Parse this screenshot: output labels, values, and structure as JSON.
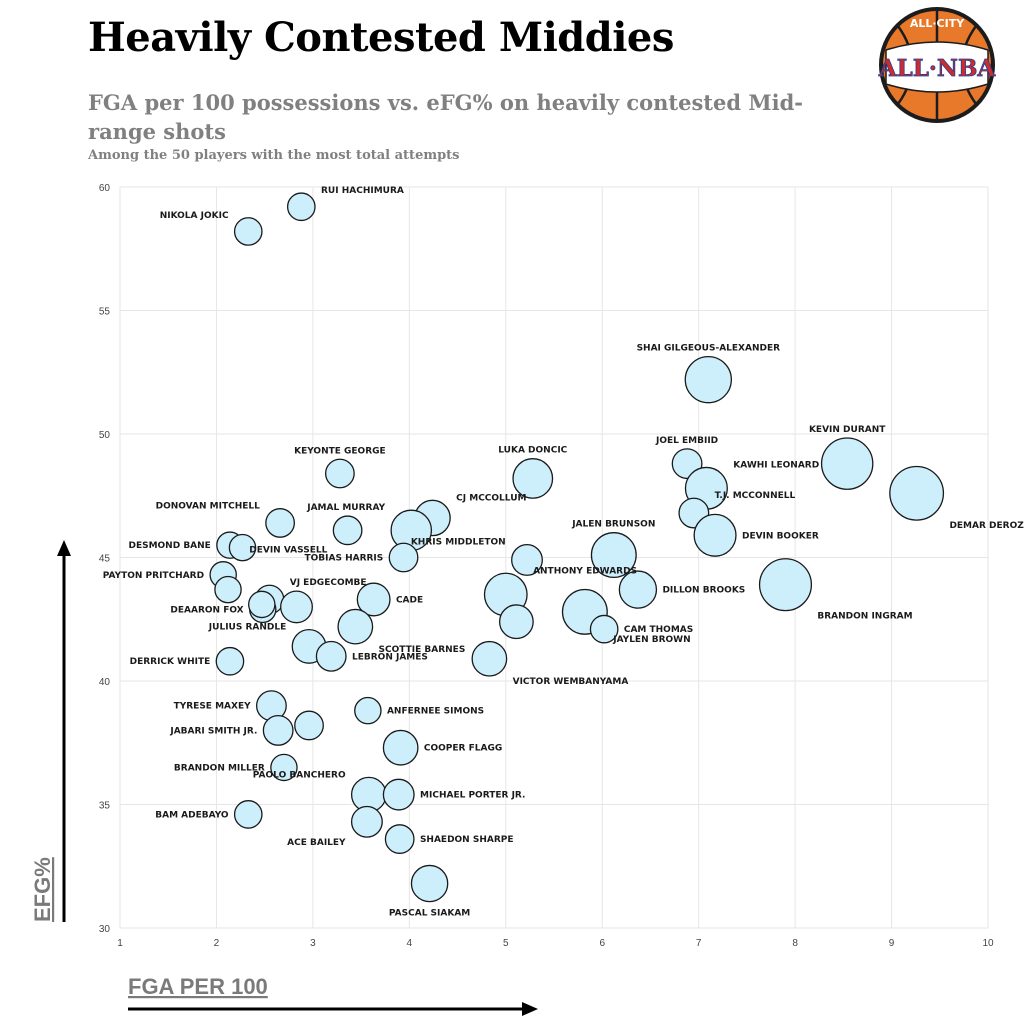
{
  "header": {
    "title": "Heavily Contested Middies",
    "subtitle": "FGA per 100 possessions vs. eFG% on heavily contested Mid-range shots",
    "note": "Among the 50 players with the most total attempts"
  },
  "logo": {
    "top_text": "ALL·CITY",
    "main_text": "ALL·NBA",
    "colors": {
      "ball": "#e8782a",
      "ring": "#1c1c1c",
      "red": "#d12a2a",
      "blue": "#1f3f99"
    }
  },
  "colors": {
    "bubble_fill": "#cdeefb",
    "bubble_stroke": "#1a1a1a",
    "grid": "#e6e6e6"
  },
  "chart_data": {
    "type": "scatter",
    "xlabel": "FGA PER 100",
    "ylabel": "EFG%",
    "xlim": [
      1,
      10
    ],
    "ylim": [
      30,
      60
    ],
    "xticks": [
      1,
      2,
      3,
      4,
      5,
      6,
      7,
      8,
      9,
      10
    ],
    "yticks": [
      30,
      35,
      40,
      45,
      50,
      55,
      60
    ],
    "grid": true,
    "size_encoding": "total attempts",
    "points": [
      {
        "label": "RUI HACHIMURA",
        "x": 2.88,
        "y": 59.2,
        "size": 120,
        "lx": 1,
        "ly": -1
      },
      {
        "label": "NIKOLA JOKIC",
        "x": 2.33,
        "y": 58.2,
        "size": 120,
        "lx": -1,
        "ly": -1
      },
      {
        "label": "SHAI GILGEOUS-ALEXANDER",
        "x": 7.1,
        "y": 52.2,
        "size": 340,
        "lx": 0,
        "ly": -1
      },
      {
        "label": "KEVIN DURANT",
        "x": 8.54,
        "y": 48.8,
        "size": 420,
        "lx": 0,
        "ly": -1
      },
      {
        "label": "DEMAR DEROZAN",
        "x": 9.26,
        "y": 47.6,
        "size": 460,
        "lx": 1,
        "ly": 1
      },
      {
        "label": "JOEL EMBIID",
        "x": 6.88,
        "y": 48.8,
        "size": 140,
        "lx": 0,
        "ly": -1
      },
      {
        "label": "KAWHI LEONARD",
        "x": 7.08,
        "y": 47.8,
        "size": 280,
        "lx": 1,
        "ly": -1
      },
      {
        "label": "T.J. MCCONNELL",
        "x": 6.95,
        "y": 46.8,
        "size": 140,
        "lx": 1,
        "ly": -1
      },
      {
        "label": "DEVIN BOOKER",
        "x": 7.17,
        "y": 45.9,
        "size": 280,
        "lx": 1,
        "ly": 0
      },
      {
        "label": "LUKA DONCIC",
        "x": 5.28,
        "y": 48.2,
        "size": 250,
        "lx": 0,
        "ly": -1
      },
      {
        "label": "KEYONTE GEORGE",
        "x": 3.28,
        "y": 48.4,
        "size": 130,
        "lx": 0,
        "ly": -1
      },
      {
        "label": "CJ MCCOLLUM",
        "x": 4.24,
        "y": 46.6,
        "size": 200,
        "lx": 1,
        "ly": -1
      },
      {
        "label": "JAMAL MURRAY",
        "x": 4.02,
        "y": 46.1,
        "size": 260,
        "lx": -1,
        "ly": -1
      },
      {
        "label": "KHRIS MIDDLETON",
        "x": 5.22,
        "y": 44.9,
        "size": 150,
        "lx": -1,
        "ly": -1
      },
      {
        "label": "JALEN BRUNSON",
        "x": 6.12,
        "y": 45.1,
        "size": 320,
        "lx": 0,
        "ly": -1
      },
      {
        "label": "DONOVAN MITCHELL",
        "x": 2.66,
        "y": 46.4,
        "size": 130,
        "lx": -1,
        "ly": -1
      },
      {
        "label": "DEVIN VASSELL",
        "x": 3.36,
        "y": 46.1,
        "size": 130,
        "lx": -1,
        "ly": 1
      },
      {
        "label": "TOBIAS HARRIS",
        "x": 3.94,
        "y": 45.0,
        "size": 130,
        "lx": -1,
        "ly": 0
      },
      {
        "label": "DESMOND BANE",
        "x": 2.14,
        "y": 45.5,
        "size": 110,
        "lx": -1,
        "ly": 0
      },
      {
        "label": "",
        "x": 2.27,
        "y": 45.4,
        "size": 110,
        "lx": 0,
        "ly": 0
      },
      {
        "label": "PAYTON PRITCHARD",
        "x": 2.07,
        "y": 44.3,
        "size": 110,
        "lx": -1,
        "ly": 0
      },
      {
        "label": "",
        "x": 2.12,
        "y": 43.7,
        "size": 110,
        "lx": 0,
        "ly": 0
      },
      {
        "label": "VJ EDGECOMBE",
        "x": 2.55,
        "y": 43.3,
        "size": 130,
        "lx": 1,
        "ly": -1
      },
      {
        "label": "DEAARON FOX",
        "x": 2.48,
        "y": 42.9,
        "size": 110,
        "lx": -1,
        "ly": 0
      },
      {
        "label": "",
        "x": 2.47,
        "y": 43.1,
        "size": 110,
        "lx": 0,
        "ly": 0
      },
      {
        "label": "",
        "x": 2.83,
        "y": 43.0,
        "size": 160,
        "lx": 0,
        "ly": 0
      },
      {
        "label": "CADE",
        "x": 3.63,
        "y": 43.3,
        "size": 170,
        "lx": 1,
        "ly": 0
      },
      {
        "label": "SCOTTIE BARNES",
        "x": 3.44,
        "y": 42.2,
        "size": 190,
        "lx": 1,
        "ly": 1
      },
      {
        "label": "ANTHONY EDWARDS",
        "x": 5.0,
        "y": 43.5,
        "size": 290,
        "lx": 1,
        "ly": -1
      },
      {
        "label": "",
        "x": 5.11,
        "y": 42.4,
        "size": 180,
        "lx": 0,
        "ly": 0
      },
      {
        "label": "JAYLEN BROWN",
        "x": 5.82,
        "y": 42.8,
        "size": 320,
        "lx": 1,
        "ly": 1
      },
      {
        "label": "CAM THOMAS",
        "x": 6.02,
        "y": 42.1,
        "size": 120,
        "lx": 1,
        "ly": 0
      },
      {
        "label": "DILLON BROOKS",
        "x": 6.37,
        "y": 43.7,
        "size": 220,
        "lx": 1,
        "ly": 0
      },
      {
        "label": "BRANDON INGRAM",
        "x": 7.9,
        "y": 43.9,
        "size": 430,
        "lx": 1,
        "ly": 1
      },
      {
        "label": "JULIUS RANDLE",
        "x": 2.96,
        "y": 41.4,
        "size": 180,
        "lx": -1,
        "ly": -1
      },
      {
        "label": "LEBRON JAMES",
        "x": 3.19,
        "y": 41.0,
        "size": 140,
        "lx": 1,
        "ly": 0
      },
      {
        "label": "DERRICK WHITE",
        "x": 2.14,
        "y": 40.8,
        "size": 120,
        "lx": -1,
        "ly": 0
      },
      {
        "label": "VICTOR WEMBANYAMA",
        "x": 4.83,
        "y": 40.9,
        "size": 190,
        "lx": 1,
        "ly": 1
      },
      {
        "label": "TYRESE MAXEY",
        "x": 2.57,
        "y": 39.0,
        "size": 140,
        "lx": -1,
        "ly": 0
      },
      {
        "label": "ANFERNEE SIMONS",
        "x": 3.57,
        "y": 38.8,
        "size": 110,
        "lx": 1,
        "ly": 0
      },
      {
        "label": "JABARI SMITH JR.",
        "x": 2.64,
        "y": 38.0,
        "size": 140,
        "lx": -1,
        "ly": 0
      },
      {
        "label": "",
        "x": 2.96,
        "y": 38.2,
        "size": 130,
        "lx": 0,
        "ly": 0
      },
      {
        "label": "COOPER FLAGG",
        "x": 3.91,
        "y": 37.3,
        "size": 190,
        "lx": 1,
        "ly": 0
      },
      {
        "label": "BRANDON MILLER",
        "x": 2.7,
        "y": 36.5,
        "size": 110,
        "lx": -1,
        "ly": 0
      },
      {
        "label": "PAOLO BANCHERO",
        "x": 3.58,
        "y": 35.4,
        "size": 190,
        "lx": -1,
        "ly": -1
      },
      {
        "label": "MICHAEL PORTER JR.",
        "x": 3.89,
        "y": 35.4,
        "size": 150,
        "lx": 1,
        "ly": 0
      },
      {
        "label": "BAM ADEBAYO",
        "x": 2.33,
        "y": 34.6,
        "size": 120,
        "lx": -1,
        "ly": 0
      },
      {
        "label": "ACE BAILEY",
        "x": 3.56,
        "y": 34.3,
        "size": 150,
        "lx": -1,
        "ly": 1
      },
      {
        "label": "SHAEDON SHARPE",
        "x": 3.9,
        "y": 33.6,
        "size": 130,
        "lx": 1,
        "ly": 0
      },
      {
        "label": "PASCAL SIAKAM",
        "x": 4.21,
        "y": 31.8,
        "size": 210,
        "lx": 0,
        "ly": 1
      }
    ]
  }
}
